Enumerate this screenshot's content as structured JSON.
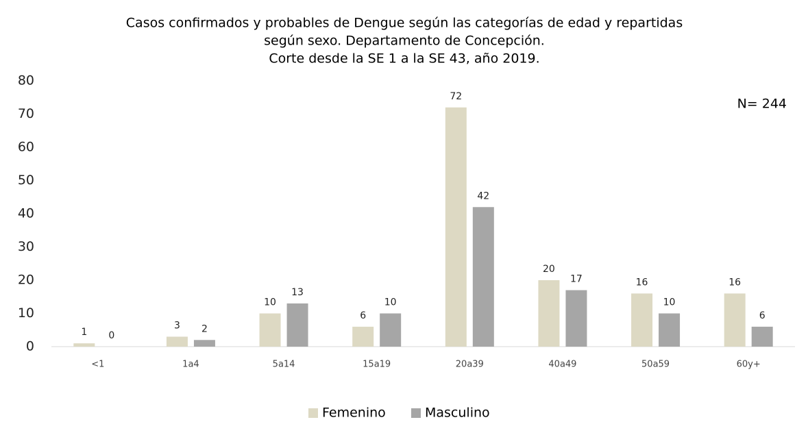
{
  "chart_data": {
    "type": "bar",
    "title": [
      "Casos confirmados y probables de Dengue según las categorías de edad y repartidas",
      "según sexo. Departamento de Concepción.",
      "Corte desde la SE 1 a la SE 43, año 2019."
    ],
    "annotation": "N= 244",
    "categories": [
      "<1",
      "1a4",
      "5a14",
      "15a19",
      "20a39",
      "40a49",
      "50a59",
      "60y+"
    ],
    "series": [
      {
        "name": "Femenino",
        "color": "#ddd9c3",
        "values": [
          1,
          3,
          10,
          6,
          72,
          20,
          16,
          16
        ]
      },
      {
        "name": "Masculino",
        "color": "#a6a6a6",
        "values": [
          0,
          2,
          13,
          10,
          42,
          17,
          10,
          6
        ]
      }
    ],
    "ylim": [
      0,
      80
    ],
    "yticks": [
      0,
      10,
      20,
      30,
      40,
      50,
      60,
      70,
      80
    ],
    "legend": "bottom"
  }
}
